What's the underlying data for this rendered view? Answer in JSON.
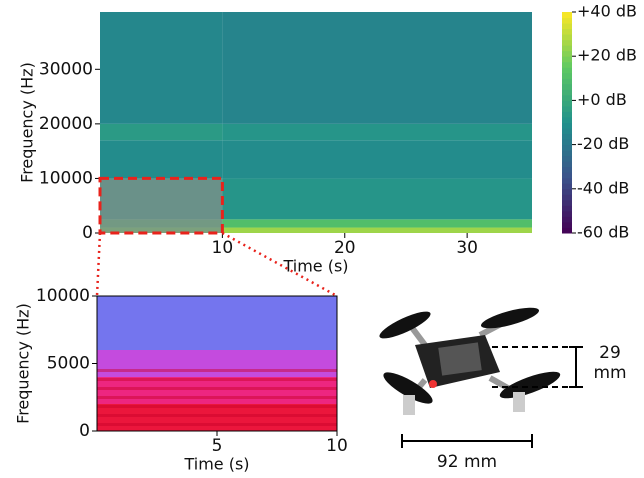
{
  "chart_data": [
    {
      "type": "heatmap",
      "xlabel": "Time (s)",
      "ylabel": "Frequency (Hz)",
      "x_bins": [
        0,
        10,
        35.3
      ],
      "y_bins": [
        0,
        1000,
        2500,
        10000,
        17000,
        20000,
        40500
      ],
      "values": [
        [
          15,
          25
        ],
        [
          5,
          10
        ],
        [
          -5,
          -8
        ],
        [
          -12,
          -12
        ],
        [
          -6,
          -8
        ],
        [
          -14,
          -15
        ]
      ],
      "colormap": "viridis",
      "clim": [
        -60,
        40
      ],
      "cticks": [
        {
          "value": 40,
          "label": "+40 dB"
        },
        {
          "value": 20,
          "label": "+20 dB"
        },
        {
          "value": 0,
          "label": "+0 dB"
        },
        {
          "value": -20,
          "label": "-20 dB"
        },
        {
          "value": -40,
          "label": "-40 dB"
        },
        {
          "value": -60,
          "label": "-60 dB"
        }
      ],
      "xlim": [
        0,
        35.3
      ],
      "ylim": [
        0,
        40500
      ],
      "xticks": [
        10,
        20,
        30
      ],
      "yticks": [
        0,
        10000,
        20000,
        30000
      ],
      "highlight": {
        "x": [
          0,
          10
        ],
        "y": [
          0,
          10000
        ],
        "color": "#e8231c"
      }
    },
    {
      "type": "heatmap",
      "xlabel": "Time (s)",
      "ylabel": "Frequency (Hz)",
      "x_bins": [
        0,
        10
      ],
      "y_bins": [
        0,
        2000,
        4000,
        6000,
        10000
      ],
      "values": [
        [
          15
        ],
        [
          5
        ],
        [
          -10
        ],
        [
          -25
        ]
      ],
      "colormap": "cool-red",
      "clim": [
        -30,
        20
      ],
      "xlim": [
        0,
        10
      ],
      "ylim": [
        0,
        10000
      ],
      "xticks": [
        5,
        10
      ],
      "yticks": [
        0,
        5000,
        10000
      ]
    }
  ],
  "drone": {
    "height_label": "29 mm",
    "width_label": "92 mm"
  }
}
